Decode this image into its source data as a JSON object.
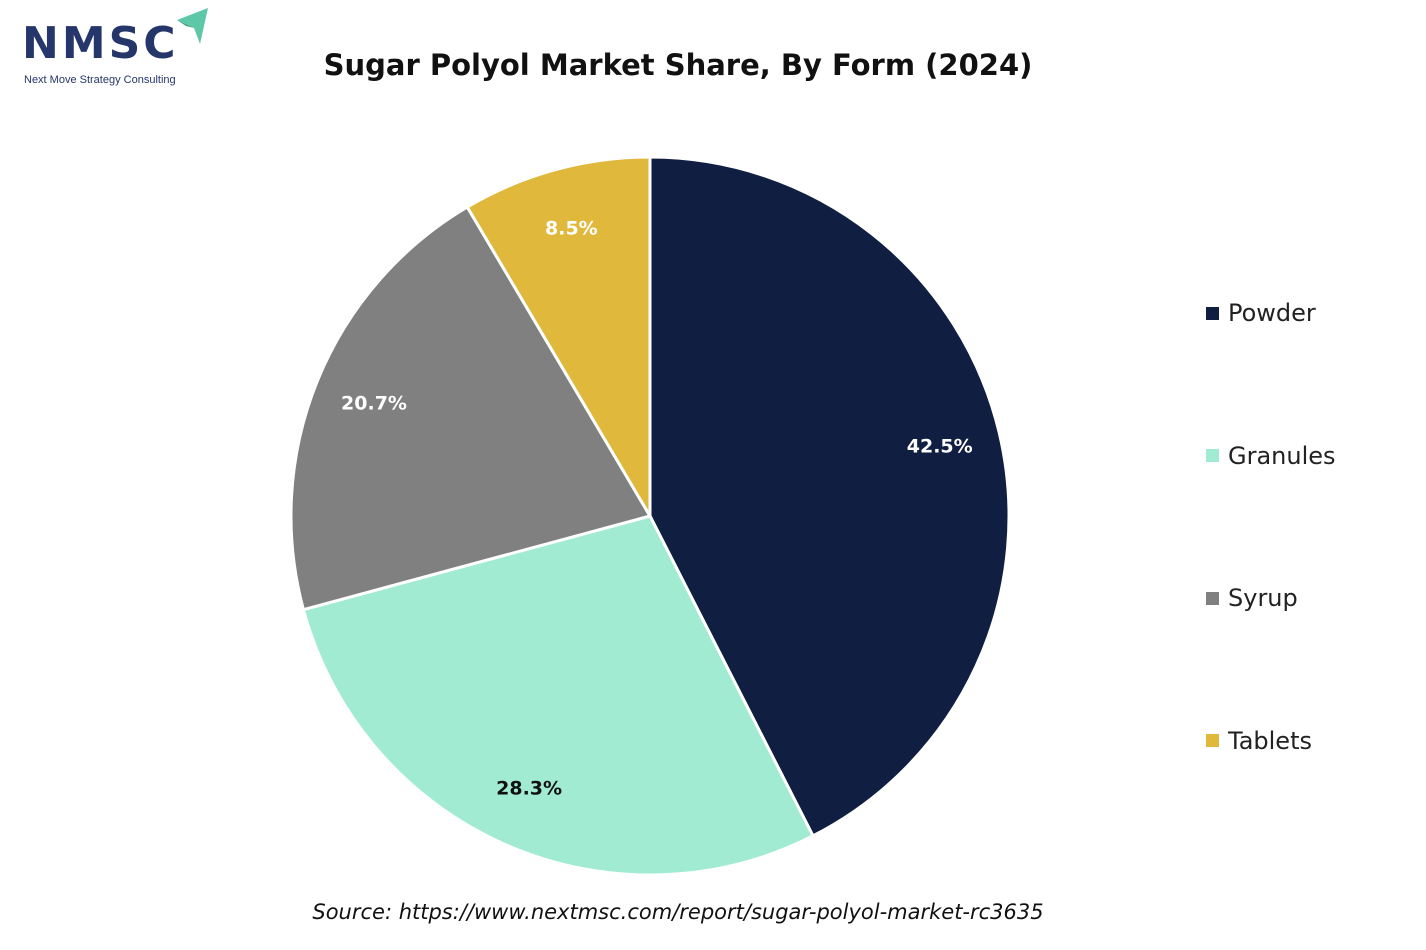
{
  "logo": {
    "text": "NMSC",
    "tagline": "Next Move Strategy Consulting",
    "text_color": "#25366b",
    "arrow_color": "#5ec8a6"
  },
  "source": "Source: https://www.nextmsc.com/report/sugar-polyol-market-rc3635",
  "chart_data": {
    "type": "pie",
    "title": "Sugar Polyol Market Share, By Form (2024)",
    "categories": [
      "Powder",
      "Granules",
      "Syrup",
      "Tablets"
    ],
    "values": [
      42.5,
      28.3,
      20.7,
      8.5
    ],
    "labels": [
      "42.5%",
      "28.3%",
      "20.7%",
      "8.5%"
    ],
    "colors": [
      "#101e42",
      "#a1ebd2",
      "#808080",
      "#e0b93c"
    ],
    "label_colors": [
      "#ffffff",
      "#111111",
      "#ffffff",
      "#ffffff"
    ],
    "start_angle": "12 o'clock",
    "direction": "clockwise",
    "legend_position": "right"
  }
}
